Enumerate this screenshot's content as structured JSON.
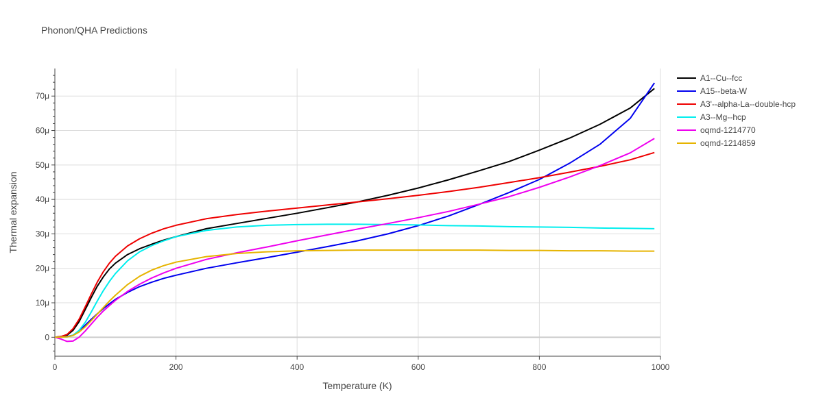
{
  "chart_data": {
    "type": "line",
    "title": "Phonon/QHA Predictions",
    "xlabel": "Temperature (K)",
    "ylabel": "Thermal expansion",
    "xlim": [
      0,
      1000
    ],
    "ylim": [
      -5.5,
      78
    ],
    "x_ticks": [
      0,
      200,
      400,
      600,
      800,
      1000
    ],
    "x_tick_labels": [
      "0",
      "200",
      "400",
      "600",
      "800",
      "1000"
    ],
    "y_ticks": [
      0,
      10,
      20,
      30,
      40,
      50,
      60,
      70
    ],
    "y_tick_labels": [
      "0",
      "10μ",
      "20μ",
      "30μ",
      "40μ",
      "50μ",
      "60μ",
      "70μ"
    ],
    "grid": true,
    "legend_position": "top-right",
    "series": [
      {
        "name": "A1--Cu--fcc",
        "color": "#000000",
        "points": [
          [
            0,
            0
          ],
          [
            10,
            0.2
          ],
          [
            20,
            0.6
          ],
          [
            30,
            2
          ],
          [
            40,
            4.5
          ],
          [
            50,
            8
          ],
          [
            60,
            11.5
          ],
          [
            70,
            14.8
          ],
          [
            80,
            17.5
          ],
          [
            90,
            19.8
          ],
          [
            100,
            21.5
          ],
          [
            120,
            24
          ],
          [
            140,
            25.7
          ],
          [
            160,
            27
          ],
          [
            180,
            28.2
          ],
          [
            200,
            29.2
          ],
          [
            250,
            31.5
          ],
          [
            300,
            33
          ],
          [
            350,
            34.5
          ],
          [
            400,
            36
          ],
          [
            450,
            37.6
          ],
          [
            500,
            39.3
          ],
          [
            550,
            41.2
          ],
          [
            600,
            43.3
          ],
          [
            650,
            45.7
          ],
          [
            700,
            48.3
          ],
          [
            750,
            51
          ],
          [
            800,
            54.3
          ],
          [
            850,
            57.8
          ],
          [
            900,
            61.8
          ],
          [
            950,
            66.5
          ],
          [
            990,
            72.2
          ]
        ]
      },
      {
        "name": "A15--beta-W",
        "color": "#0000ee",
        "points": [
          [
            0,
            0
          ],
          [
            10,
            0
          ],
          [
            20,
            0.2
          ],
          [
            30,
            0.6
          ],
          [
            40,
            1.8
          ],
          [
            50,
            3.5
          ],
          [
            60,
            5.2
          ],
          [
            70,
            6.8
          ],
          [
            80,
            8.3
          ],
          [
            90,
            9.7
          ],
          [
            100,
            11
          ],
          [
            120,
            13
          ],
          [
            140,
            14.7
          ],
          [
            160,
            16
          ],
          [
            180,
            17.1
          ],
          [
            200,
            18
          ],
          [
            250,
            20
          ],
          [
            300,
            21.6
          ],
          [
            350,
            23.1
          ],
          [
            400,
            24.7
          ],
          [
            450,
            26.3
          ],
          [
            500,
            28
          ],
          [
            550,
            30
          ],
          [
            600,
            32.4
          ],
          [
            650,
            35.2
          ],
          [
            700,
            38.5
          ],
          [
            750,
            42
          ],
          [
            800,
            45.8
          ],
          [
            850,
            50.5
          ],
          [
            900,
            56
          ],
          [
            950,
            63.5
          ],
          [
            990,
            73.8
          ]
        ]
      },
      {
        "name": "A3'--alpha-La--double-hcp",
        "color": "#ee0000",
        "points": [
          [
            0,
            0
          ],
          [
            10,
            0.2
          ],
          [
            20,
            0.8
          ],
          [
            30,
            2.5
          ],
          [
            40,
            5.2
          ],
          [
            50,
            8.8
          ],
          [
            60,
            12.5
          ],
          [
            70,
            16
          ],
          [
            80,
            19
          ],
          [
            90,
            21.5
          ],
          [
            100,
            23.5
          ],
          [
            120,
            26.5
          ],
          [
            140,
            28.6
          ],
          [
            160,
            30.2
          ],
          [
            180,
            31.5
          ],
          [
            200,
            32.5
          ],
          [
            250,
            34.4
          ],
          [
            300,
            35.6
          ],
          [
            350,
            36.6
          ],
          [
            400,
            37.5
          ],
          [
            450,
            38.4
          ],
          [
            500,
            39.3
          ],
          [
            550,
            40.2
          ],
          [
            600,
            41.2
          ],
          [
            650,
            42.3
          ],
          [
            700,
            43.5
          ],
          [
            750,
            44.9
          ],
          [
            800,
            46.3
          ],
          [
            850,
            47.9
          ],
          [
            900,
            49.6
          ],
          [
            950,
            51.5
          ],
          [
            990,
            53.6
          ]
        ]
      },
      {
        "name": "A3--Mg--hcp",
        "color": "#00eeee",
        "points": [
          [
            0,
            0
          ],
          [
            10,
            0
          ],
          [
            20,
            0.1
          ],
          [
            30,
            0.6
          ],
          [
            40,
            2
          ],
          [
            50,
            4.3
          ],
          [
            60,
            7.3
          ],
          [
            70,
            10.5
          ],
          [
            80,
            13.5
          ],
          [
            90,
            16.2
          ],
          [
            100,
            18.5
          ],
          [
            120,
            22.2
          ],
          [
            140,
            24.8
          ],
          [
            160,
            26.6
          ],
          [
            180,
            28
          ],
          [
            200,
            29.2
          ],
          [
            250,
            31
          ],
          [
            300,
            32
          ],
          [
            350,
            32.5
          ],
          [
            400,
            32.7
          ],
          [
            450,
            32.8
          ],
          [
            500,
            32.8
          ],
          [
            550,
            32.7
          ],
          [
            600,
            32.6
          ],
          [
            650,
            32.4
          ],
          [
            700,
            32.3
          ],
          [
            750,
            32.1
          ],
          [
            800,
            32
          ],
          [
            850,
            31.9
          ],
          [
            900,
            31.7
          ],
          [
            950,
            31.6
          ],
          [
            990,
            31.5
          ]
        ]
      },
      {
        "name": "oqmd-1214770",
        "color": "#ee00ee",
        "points": [
          [
            0,
            0
          ],
          [
            10,
            -0.5
          ],
          [
            20,
            -1.2
          ],
          [
            30,
            -1.1
          ],
          [
            40,
            0
          ],
          [
            50,
            1.8
          ],
          [
            60,
            3.8
          ],
          [
            70,
            5.8
          ],
          [
            80,
            7.6
          ],
          [
            90,
            9.2
          ],
          [
            100,
            10.7
          ],
          [
            120,
            13.3
          ],
          [
            140,
            15.4
          ],
          [
            160,
            17.2
          ],
          [
            180,
            18.7
          ],
          [
            200,
            20
          ],
          [
            250,
            22.6
          ],
          [
            300,
            24.5
          ],
          [
            350,
            26.2
          ],
          [
            400,
            28
          ],
          [
            450,
            29.7
          ],
          [
            500,
            31.4
          ],
          [
            550,
            33
          ],
          [
            600,
            34.7
          ],
          [
            650,
            36.5
          ],
          [
            700,
            38.6
          ],
          [
            750,
            40.8
          ],
          [
            800,
            43.5
          ],
          [
            850,
            46.5
          ],
          [
            900,
            49.8
          ],
          [
            950,
            53.5
          ],
          [
            990,
            57.7
          ]
        ]
      },
      {
        "name": "oqmd-1214859",
        "color": "#e6b400",
        "points": [
          [
            0,
            0
          ],
          [
            10,
            0
          ],
          [
            20,
            0.1
          ],
          [
            30,
            0.5
          ],
          [
            40,
            1.5
          ],
          [
            50,
            3
          ],
          [
            60,
            4.8
          ],
          [
            70,
            6.7
          ],
          [
            80,
            8.6
          ],
          [
            90,
            10.5
          ],
          [
            100,
            12.2
          ],
          [
            120,
            15.3
          ],
          [
            140,
            17.7
          ],
          [
            160,
            19.5
          ],
          [
            180,
            20.8
          ],
          [
            200,
            21.8
          ],
          [
            250,
            23.4
          ],
          [
            300,
            24.3
          ],
          [
            350,
            24.8
          ],
          [
            400,
            25.1
          ],
          [
            450,
            25.2
          ],
          [
            500,
            25.3
          ],
          [
            550,
            25.3
          ],
          [
            600,
            25.3
          ],
          [
            650,
            25.3
          ],
          [
            700,
            25.3
          ],
          [
            750,
            25.2
          ],
          [
            800,
            25.2
          ],
          [
            850,
            25.1
          ],
          [
            900,
            25.1
          ],
          [
            950,
            25
          ],
          [
            990,
            25
          ]
        ]
      }
    ]
  }
}
